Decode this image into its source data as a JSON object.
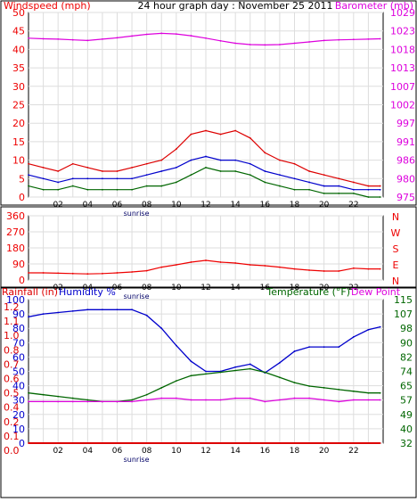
{
  "title": "24 hour graph day : November 25 2011",
  "colors": {
    "wind": "#ee0000",
    "gust": "#dd0000",
    "avg_wind": "#0000cc",
    "wind_min": "#006600",
    "barometer": "#dd00dd",
    "direction": "#ee0000",
    "humidity": "#0000cc",
    "temperature": "#006600",
    "dewpoint": "#dd00dd",
    "rainfall": "#dd0000",
    "grid": "#dddddd",
    "frame": "#000000"
  },
  "chart_data": [
    {
      "type": "line",
      "id": "wind-barometer",
      "title": "24 hour graph day : November 25 2011",
      "ylabel_left": "Windspeed (mph)",
      "ylabel_right": "Barometer (mb)",
      "x_ticks": [
        "02",
        "04",
        "06",
        "08",
        "10",
        "12",
        "14",
        "16",
        "18",
        "20",
        "22"
      ],
      "annotation": "sunrise",
      "ylim": [
        0,
        50
      ],
      "y_ticks": [
        "0",
        "5",
        "10",
        "15",
        "20",
        "25",
        "30",
        "35",
        "40",
        "45",
        "50"
      ],
      "y2lim": [
        975,
        1029
      ],
      "y2_ticks": [
        "975",
        "980",
        "986",
        "991",
        "997",
        "1002",
        "1007",
        "1013",
        "1018",
        "1023",
        "1029"
      ],
      "x_hours": [
        0,
        1,
        2,
        3,
        4,
        5,
        6,
        7,
        8,
        9,
        10,
        11,
        12,
        13,
        14,
        15,
        16,
        17,
        18,
        19,
        20,
        21,
        22,
        23,
        23.8
      ],
      "series": [
        {
          "key": "gust",
          "axis": "left",
          "values": [
            9,
            8,
            7,
            9,
            8,
            7,
            7,
            8,
            9,
            10,
            13,
            17,
            18,
            17,
            18,
            16,
            12,
            10,
            9,
            7,
            6,
            5,
            4,
            3,
            3
          ]
        },
        {
          "key": "avg",
          "axis": "left",
          "values": [
            6,
            5,
            4,
            5,
            5,
            5,
            5,
            5,
            6,
            7,
            8,
            10,
            11,
            10,
            10,
            9,
            7,
            6,
            5,
            4,
            3,
            3,
            2,
            2,
            2
          ]
        },
        {
          "key": "min",
          "axis": "left",
          "values": [
            3,
            2,
            2,
            3,
            2,
            2,
            2,
            2,
            3,
            3,
            4,
            6,
            8,
            7,
            7,
            6,
            4,
            3,
            2,
            2,
            1,
            1,
            1,
            0,
            0
          ]
        },
        {
          "key": "barometer",
          "axis": "right",
          "values": [
            1021.5,
            1021.3,
            1021.2,
            1021.0,
            1020.8,
            1021.2,
            1021.6,
            1022.1,
            1022.6,
            1022.9,
            1022.7,
            1022.2,
            1021.5,
            1020.7,
            1020.0,
            1019.6,
            1019.5,
            1019.6,
            1020.0,
            1020.4,
            1020.8,
            1021.0,
            1021.1,
            1021.2,
            1021.3
          ]
        }
      ]
    },
    {
      "type": "line",
      "id": "wind-direction",
      "ylim": [
        0,
        360
      ],
      "y_ticks": [
        "0",
        "90",
        "180",
        "270",
        "360"
      ],
      "y2_ticks": [
        "N",
        "W",
        "S",
        "E",
        "N"
      ],
      "x_ticks": [
        "02",
        "04",
        "06",
        "08",
        "10",
        "12",
        "14",
        "16",
        "18",
        "20",
        "22"
      ],
      "annotation": "sunrise",
      "x_hours": [
        0,
        1,
        2,
        3,
        4,
        5,
        6,
        7,
        8,
        9,
        10,
        11,
        12,
        13,
        14,
        15,
        16,
        17,
        18,
        19,
        20,
        21,
        22,
        23,
        23.8
      ],
      "series": [
        {
          "key": "direction",
          "axis": "left",
          "values": [
            40,
            40,
            38,
            36,
            34,
            36,
            40,
            45,
            52,
            72,
            85,
            100,
            110,
            100,
            95,
            85,
            80,
            72,
            62,
            55,
            50,
            50,
            66,
            62,
            62
          ]
        }
      ]
    },
    {
      "type": "line",
      "id": "rain-humidity-temp",
      "ylabel_left": "Rainfall (in)",
      "ylabel_mid": "Humidity %",
      "ylabel_right_a": "Temperature (°F)",
      "ylabel_right_b": "Dew Point",
      "ylim_humidity": [
        0,
        100
      ],
      "y_ticks_humidity": [
        "0",
        "10",
        "20",
        "30",
        "40",
        "50",
        "60",
        "70",
        "80",
        "90",
        "100"
      ],
      "ylim_rain": [
        0,
        1.2
      ],
      "y_ticks_rain": [
        "0.0",
        "0.1",
        "0.2",
        "0.4",
        "0.5",
        "0.6",
        "0.7",
        "0.8",
        "1.0",
        "1.1",
        "1.2"
      ],
      "y2lim": [
        32,
        115
      ],
      "y2_ticks": [
        "32",
        "40",
        "49",
        "57",
        "65",
        "74",
        "82",
        "90",
        "98",
        "107",
        "115"
      ],
      "x_ticks": [
        "02",
        "04",
        "06",
        "08",
        "10",
        "12",
        "14",
        "16",
        "18",
        "20",
        "22"
      ],
      "annotation": "sunrise",
      "x_hours": [
        0,
        1,
        2,
        3,
        4,
        5,
        6,
        7,
        8,
        9,
        10,
        11,
        12,
        13,
        14,
        15,
        16,
        17,
        18,
        19,
        20,
        21,
        22,
        23,
        23.8
      ],
      "series": [
        {
          "key": "humidity",
          "axis": "humidity",
          "values": [
            88,
            90,
            91,
            92,
            93,
            93,
            93,
            93,
            89,
            80,
            68,
            57,
            50,
            50,
            53,
            55,
            49,
            56,
            64,
            67,
            67,
            67,
            74,
            79,
            81
          ]
        },
        {
          "key": "temperature",
          "axis": "right",
          "values": [
            61,
            60,
            59,
            58,
            57,
            56,
            56,
            57,
            60,
            64,
            68,
            71,
            72,
            73,
            74,
            75,
            73,
            70,
            67,
            65,
            64,
            63,
            62,
            61,
            61
          ]
        },
        {
          "key": "dewpoint",
          "axis": "right",
          "values": [
            56,
            56,
            56,
            56,
            56,
            56,
            56,
            56,
            57,
            58,
            58,
            57,
            57,
            57,
            58,
            58,
            56,
            57,
            58,
            58,
            57,
            56,
            57,
            57,
            57
          ]
        },
        {
          "key": "rainfall",
          "axis": "rain",
          "values": [
            0,
            0,
            0,
            0,
            0,
            0,
            0,
            0,
            0,
            0,
            0,
            0,
            0,
            0,
            0,
            0,
            0,
            0,
            0,
            0,
            0,
            0,
            0,
            0,
            0
          ]
        }
      ]
    }
  ]
}
